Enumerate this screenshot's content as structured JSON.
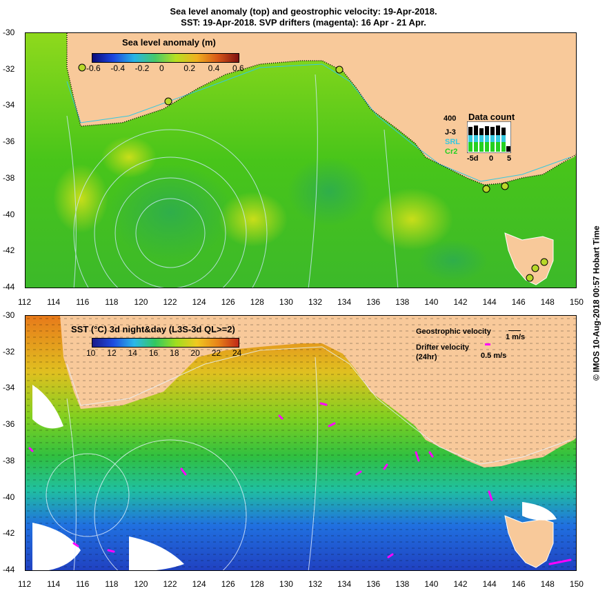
{
  "title": {
    "line1": "Sea level anomaly (top) and geostrophic velocity: 19-Apr-2018.",
    "line2": "SST: 19-Apr-2018. SVP drifters (magenta): 16 Apr - 21 Apr."
  },
  "top_panel": {
    "colorbar_title": "Sea level anomaly (m)",
    "colorbar_ticks": [
      "-0.6",
      "-0.4",
      "-0.2",
      "0",
      "0.2",
      "0.4",
      "0.6"
    ],
    "data_count": {
      "title": "Data count",
      "ymax": "400",
      "series": [
        {
          "name": "J-3",
          "color": "#000000"
        },
        {
          "name": "SRL",
          "color": "#35c8e0"
        },
        {
          "name": "Cr2",
          "color": "#24d021"
        }
      ],
      "x_ticks": [
        "-5d",
        "0",
        "5"
      ]
    }
  },
  "bottom_panel": {
    "colorbar_title": "SST (°C) 3d night&day (L3S-3d QL>=2)",
    "colorbar_ticks": [
      "10",
      "12",
      "14",
      "16",
      "18",
      "20",
      "22",
      "24"
    ],
    "geostrophic_label": "Geostrophic velocity",
    "geostrophic_scale": "1 m/s",
    "drifter_label": "Drifter velocity",
    "drifter_sub": "(24hr)",
    "drifter_scale": "0.5 m/s"
  },
  "axes": {
    "lat_ticks": [
      "-30",
      "-32",
      "-34",
      "-36",
      "-38",
      "-40",
      "-42",
      "-44"
    ],
    "lon_ticks": [
      "112",
      "114",
      "116",
      "118",
      "120",
      "122",
      "124",
      "126",
      "128",
      "130",
      "132",
      "134",
      "136",
      "138",
      "140",
      "142",
      "144",
      "146",
      "148",
      "150"
    ]
  },
  "credit": "© IMOS 10-Aug-2018 00:57 Hobart Time",
  "colors": {
    "land": "#f8c99a",
    "sla_mid": "#44c419",
    "sst_warm": "#e88a1a",
    "sst_cool": "#1e5de0",
    "drifter": "#ff00ff"
  }
}
